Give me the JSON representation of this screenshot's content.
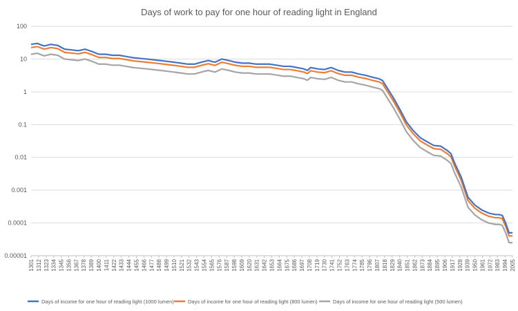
{
  "chart_data": {
    "type": "line",
    "title": "Days of work to pay for one hour of reading light in England",
    "xlabel": "",
    "ylabel": "",
    "y_scale": "log",
    "ylim": [
      1e-05,
      100
    ],
    "y_ticks": [
      "0.00001",
      "0.0001",
      "0.001",
      "0.01",
      "0.1",
      "1",
      "10",
      "100"
    ],
    "x_range": [
      1301,
      2005
    ],
    "x_ticks": [
      "1301",
      "1312",
      "1323",
      "1334",
      "1345",
      "1356",
      "1367",
      "1378",
      "1389",
      "1400",
      "1411",
      "1422",
      "1433",
      "1444",
      "1455",
      "1466",
      "1477",
      "1488",
      "1499",
      "1510",
      "1521",
      "1532",
      "1543",
      "1554",
      "1565",
      "1576",
      "1587",
      "1598",
      "1609",
      "1620",
      "1631",
      "1642",
      "1653",
      "1664",
      "1675",
      "1686",
      "1697",
      "1708",
      "1719",
      "1730",
      "1741",
      "1752",
      "1763",
      "1774",
      "1785",
      "1796",
      "1807",
      "1818",
      "1829",
      "1840",
      "1851",
      "1862",
      "1873",
      "1884",
      "1895",
      "1906",
      "1917",
      "1928",
      "1939",
      "1950",
      "1961",
      "1972",
      "1983",
      "1994",
      "2005"
    ],
    "grid": true,
    "legend_position": "bottom",
    "x": [
      1301,
      1310,
      1320,
      1330,
      1340,
      1350,
      1360,
      1370,
      1380,
      1390,
      1400,
      1410,
      1420,
      1430,
      1440,
      1450,
      1460,
      1470,
      1480,
      1490,
      1500,
      1510,
      1520,
      1530,
      1540,
      1550,
      1560,
      1570,
      1580,
      1590,
      1600,
      1610,
      1620,
      1630,
      1640,
      1650,
      1660,
      1670,
      1680,
      1690,
      1700,
      1705,
      1710,
      1720,
      1730,
      1740,
      1750,
      1760,
      1770,
      1780,
      1790,
      1800,
      1810,
      1815,
      1820,
      1830,
      1840,
      1850,
      1860,
      1870,
      1880,
      1890,
      1900,
      1910,
      1915,
      1920,
      1930,
      1940,
      1950,
      1960,
      1970,
      1980,
      1985,
      1990,
      1995,
      2000,
      2005
    ],
    "series": [
      {
        "name": "Days of income for one hour of reading light (1000 lumen)",
        "color": "#4472c4",
        "values": [
          28,
          30,
          25,
          28,
          26,
          20,
          19,
          18,
          20,
          17,
          14,
          14,
          13,
          13,
          12,
          11,
          10.5,
          10,
          9.5,
          9,
          8.5,
          8,
          7.5,
          7,
          7,
          8,
          9,
          8,
          10,
          9,
          8,
          7.5,
          7.5,
          7,
          7,
          7,
          6.5,
          6,
          6,
          5.5,
          5,
          4.5,
          5.5,
          5,
          4.8,
          5.5,
          4.5,
          4,
          4,
          3.5,
          3.2,
          2.8,
          2.5,
          2.2,
          1.5,
          0.7,
          0.3,
          0.12,
          0.065,
          0.04,
          0.03,
          0.023,
          0.022,
          0.016,
          0.013,
          0.007,
          0.0025,
          0.0006,
          0.00035,
          0.00025,
          0.0002,
          0.00018,
          0.00018,
          0.00017,
          0.0001,
          5e-05,
          5e-05
        ]
      },
      {
        "name": "Days of income for one hour of reading light (800 lumen)",
        "color": "#ed7d31",
        "values": [
          22.4,
          24,
          20,
          22.4,
          20.8,
          16,
          15.2,
          14.4,
          16,
          13.6,
          11.2,
          11.2,
          10.4,
          10.4,
          9.6,
          8.8,
          8.4,
          8,
          7.6,
          7.2,
          6.8,
          6.4,
          6,
          5.6,
          5.6,
          6.4,
          7.2,
          6.4,
          8,
          7.2,
          6.4,
          6,
          6,
          5.6,
          5.6,
          5.6,
          5.2,
          4.8,
          4.8,
          4.4,
          4,
          3.6,
          4.4,
          4,
          3.84,
          4.4,
          3.6,
          3.2,
          3.2,
          2.8,
          2.56,
          2.24,
          2,
          1.76,
          1.2,
          0.56,
          0.24,
          0.096,
          0.052,
          0.032,
          0.024,
          0.0184,
          0.0176,
          0.0128,
          0.0104,
          0.0056,
          0.002,
          0.00048,
          0.00028,
          0.0002,
          0.00016,
          0.000144,
          0.000144,
          0.000136,
          8e-05,
          4e-05,
          4e-05
        ]
      },
      {
        "name": "Days of income for one hour of reading light (500 lumen)",
        "color": "#a5a5a5",
        "values": [
          14,
          15,
          12.5,
          14,
          13,
          10,
          9.5,
          9,
          10,
          8.5,
          7,
          7,
          6.5,
          6.5,
          6,
          5.5,
          5.25,
          5,
          4.75,
          4.5,
          4.25,
          4,
          3.75,
          3.5,
          3.5,
          4,
          4.5,
          4,
          5,
          4.5,
          4,
          3.75,
          3.75,
          3.5,
          3.5,
          3.5,
          3.25,
          3,
          3,
          2.75,
          2.5,
          2.25,
          2.75,
          2.5,
          2.4,
          2.75,
          2.25,
          2,
          2,
          1.75,
          1.6,
          1.4,
          1.25,
          1.1,
          0.75,
          0.35,
          0.15,
          0.06,
          0.0325,
          0.02,
          0.015,
          0.0115,
          0.011,
          0.008,
          0.0065,
          0.0035,
          0.00125,
          0.0003,
          0.000175,
          0.000125,
          0.0001,
          9e-05,
          9e-05,
          8.5e-05,
          5e-05,
          2.5e-05,
          2.5e-05
        ]
      }
    ]
  }
}
